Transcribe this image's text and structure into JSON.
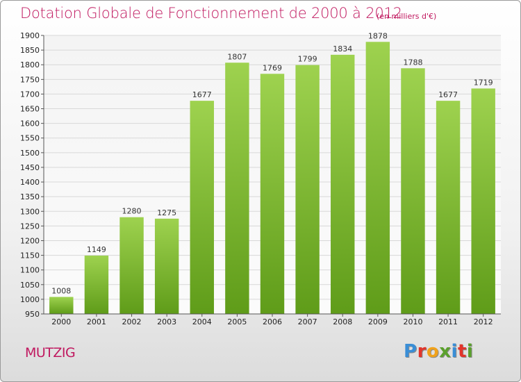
{
  "header": {
    "title": "Dotation Globale de Fonctionnement de 2000 à 2012",
    "subtitle": "(en milliers d'€)"
  },
  "footer": {
    "place": "MUTZIG",
    "logo_text": "Proxiti",
    "logo_colors": [
      "#3a8ed6",
      "#e2352b",
      "#f0a21b",
      "#5aa02c",
      "#3a8ed6",
      "#e2352b",
      "#5aa02c"
    ]
  },
  "colors": {
    "title": "#c0185f",
    "bar_top": "#9ed24f",
    "bar_bottom": "#5f9c19",
    "grid": "#d8d8d8"
  },
  "chart_data": {
    "type": "bar",
    "title": "Dotation Globale de Fonctionnement de 2000 à 2012",
    "subtitle": "(en milliers d'€)",
    "categories": [
      "2000",
      "2001",
      "2002",
      "2003",
      "2004",
      "2005",
      "2006",
      "2007",
      "2008",
      "2009",
      "2010",
      "2011",
      "2012"
    ],
    "values": [
      1008,
      1149,
      1280,
      1275,
      1677,
      1807,
      1769,
      1799,
      1834,
      1878,
      1788,
      1677,
      1719
    ],
    "ylim": [
      950,
      1900
    ],
    "yticks": [
      950,
      1000,
      1050,
      1100,
      1150,
      1200,
      1250,
      1300,
      1350,
      1400,
      1450,
      1500,
      1550,
      1600,
      1650,
      1700,
      1750,
      1800,
      1850,
      1900
    ],
    "grid": true,
    "legend": "none"
  }
}
